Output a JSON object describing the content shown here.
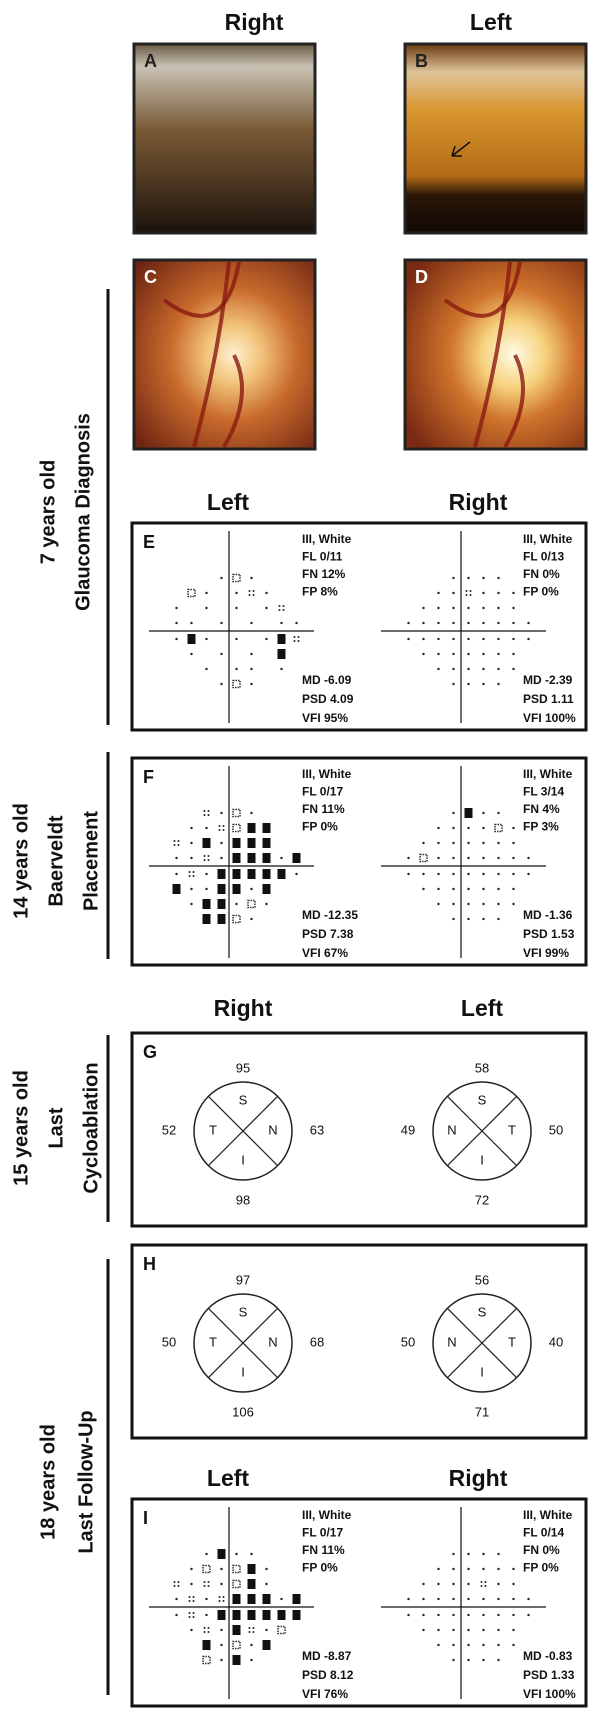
{
  "headers": [
    "Right",
    "Left"
  ],
  "photos": [
    {
      "label": "A"
    },
    {
      "label": "B"
    },
    {
      "label": "C"
    },
    {
      "label": "D"
    }
  ],
  "stages": [
    {
      "lines": [
        "7 years old",
        "Glaucoma Diagnosis"
      ]
    },
    {
      "lines": [
        "14 years old",
        "Baerveldt",
        "Placement"
      ]
    },
    {
      "lines": [
        "15 years old",
        "Last",
        "Cycloablation"
      ]
    },
    {
      "lines": [
        "18 years old",
        "Last Follow-Up"
      ]
    }
  ],
  "visual_fields": [
    {
      "label": "E",
      "headers": [
        "Left",
        "Right"
      ],
      "left": {
        "settings": [
          "III, White",
          "FL 0/11",
          "FN 12%",
          "FP 8%"
        ],
        "indices": [
          "MD -6.09",
          "PSD 4.09",
          "VFI 95%"
        ]
      },
      "right": {
        "settings": [
          "III, White",
          "FL 0/13",
          "FN 0%",
          "FP 0%"
        ],
        "indices": [
          "MD -2.39",
          "PSD 1.11",
          "VFI 100%"
        ]
      }
    },
    {
      "label": "F",
      "left": {
        "settings": [
          "III, White",
          "FL 0/17",
          "FN 11%",
          "FP 0%"
        ],
        "indices": [
          "MD -12.35",
          "PSD 7.38",
          "VFI 67%"
        ]
      },
      "right": {
        "settings": [
          "III, White",
          "FL 3/14",
          "FN 4%",
          "FP 3%"
        ],
        "indices": [
          "MD -1.36",
          "PSD 1.53",
          "VFI 99%"
        ]
      }
    },
    {
      "label": "I",
      "headers": [
        "Left",
        "Right"
      ],
      "left": {
        "settings": [
          "III, White",
          "FL 0/17",
          "FN 11%",
          "FP 0%"
        ],
        "indices": [
          "MD -8.87",
          "PSD 8.12",
          "VFI 76%"
        ]
      },
      "right": {
        "settings": [
          "III, White",
          "FL 0/14",
          "FN 0%",
          "FP 0%"
        ],
        "indices": [
          "MD -0.83",
          "PSD 1.33",
          "VFI 100%"
        ]
      }
    }
  ],
  "oct": [
    {
      "label": "G",
      "headers": [
        "Right",
        "Left"
      ],
      "eyes": [
        {
          "quadrants": [
            "S",
            "T",
            "N",
            "I"
          ],
          "values": [
            95,
            52,
            63,
            98
          ]
        },
        {
          "quadrants": [
            "S",
            "N",
            "T",
            "I"
          ],
          "values": [
            58,
            49,
            50,
            72
          ]
        }
      ]
    },
    {
      "label": "H",
      "eyes": [
        {
          "quadrants": [
            "S",
            "T",
            "N",
            "I"
          ],
          "values": [
            97,
            50,
            68,
            106
          ]
        },
        {
          "quadrants": [
            "S",
            "N",
            "T",
            "I"
          ],
          "values": [
            56,
            50,
            40,
            71
          ]
        }
      ]
    }
  ]
}
